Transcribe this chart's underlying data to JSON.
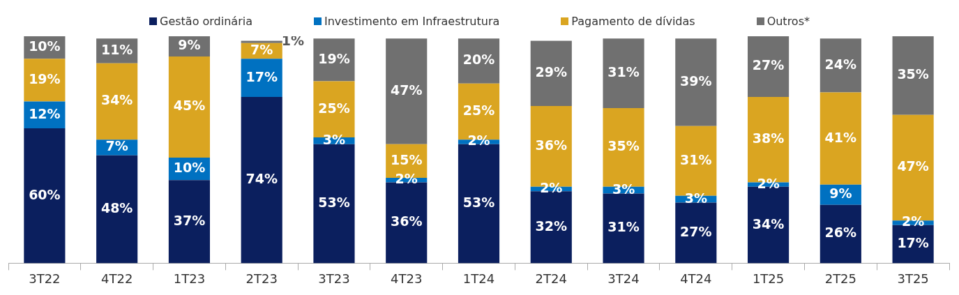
{
  "chart_data": {
    "type": "bar",
    "stacked": true,
    "legend": "top",
    "categories": [
      "3T22",
      "4T22",
      "1T23",
      "2T23",
      "3T23",
      "4T23",
      "1T24",
      "2T24",
      "3T24",
      "4T24",
      "1T25",
      "2T25",
      "3T25"
    ],
    "ylim": [
      0,
      101
    ],
    "series": [
      {
        "name": "Gestão ordinária",
        "color": "#0b1f5e",
        "values": [
          60,
          48,
          37,
          74,
          53,
          36,
          53,
          32,
          31,
          27,
          34,
          26,
          17
        ],
        "value_labels": [
          "60%",
          "48%",
          "37%",
          "74%",
          "53%",
          "36%",
          "53%",
          "32%",
          "31%",
          "27%",
          "34%",
          "26%",
          "17%"
        ]
      },
      {
        "name": "Investimento em Infraestrutura",
        "color": "#0071c1",
        "values": [
          12,
          7,
          10,
          17,
          3,
          2,
          2,
          2,
          3,
          3,
          2,
          9,
          2
        ],
        "value_labels": [
          "12%",
          "7%",
          "10%",
          "17%",
          "3%",
          "2%",
          "2%",
          "2%",
          "3%",
          "3%",
          "2%",
          "9%",
          "2%"
        ]
      },
      {
        "name": "Pagamento de dívidas",
        "color": "#daa521",
        "values": [
          19,
          34,
          45,
          7,
          25,
          15,
          25,
          36,
          35,
          31,
          38,
          41,
          47
        ],
        "value_labels": [
          "19%",
          "34%",
          "45%",
          "7%",
          "25%",
          "15%",
          "25%",
          "36%",
          "35%",
          "31%",
          "38%",
          "41%",
          "47%"
        ]
      },
      {
        "name": "Outros*",
        "color": "#707070",
        "values": [
          10,
          11,
          9,
          1,
          19,
          47,
          20,
          29,
          31,
          39,
          27,
          24,
          35
        ],
        "value_labels": [
          "10%",
          "11%",
          "9%",
          "1%",
          "19%",
          "47%",
          "20%",
          "29%",
          "31%",
          "39%",
          "27%",
          "24%",
          "35%"
        ]
      }
    ]
  }
}
